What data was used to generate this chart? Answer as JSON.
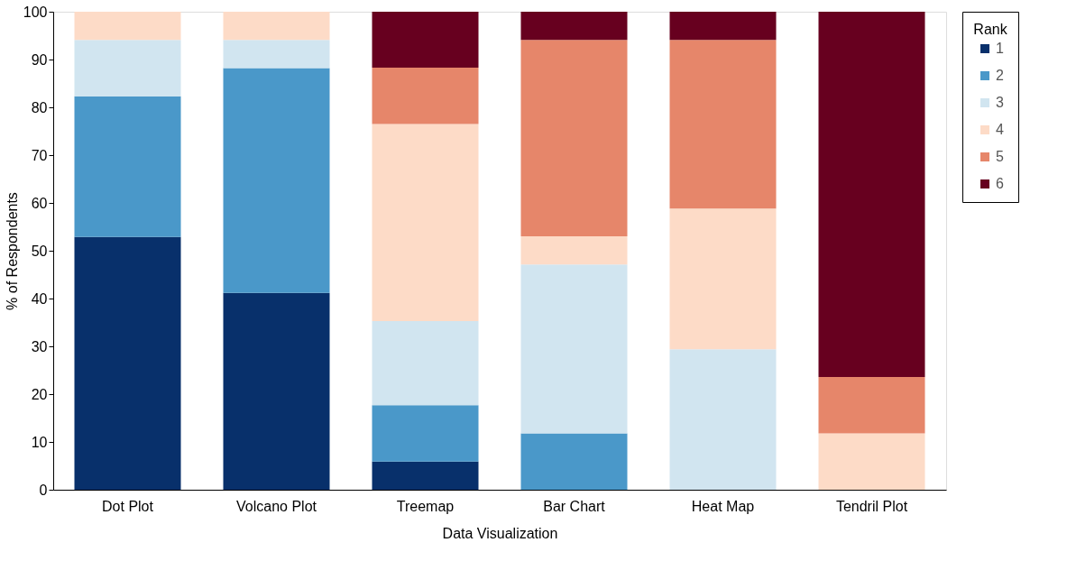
{
  "chart_data": {
    "type": "bar",
    "stacked": true,
    "xlabel": "Data Visualization",
    "ylabel": "% of Respondents",
    "legend_title": "Rank",
    "legend": "right",
    "grid": false,
    "categories": [
      "Dot Plot",
      "Volcano Plot",
      "Treemap",
      "Bar Chart",
      "Heat Map",
      "Tendril Plot"
    ],
    "ylim": [
      0,
      100
    ],
    "yticks": [
      0,
      10,
      20,
      30,
      40,
      50,
      60,
      70,
      80,
      90,
      100
    ],
    "series": [
      {
        "name": "1",
        "color": "#08306b",
        "values": [
          52.9,
          41.2,
          5.9,
          0,
          0,
          0
        ]
      },
      {
        "name": "2",
        "color": "#4a98c9",
        "values": [
          29.4,
          47.0,
          11.8,
          11.8,
          0,
          0
        ]
      },
      {
        "name": "3",
        "color": "#d1e5f0",
        "values": [
          11.8,
          5.9,
          17.6,
          35.3,
          29.4,
          0
        ]
      },
      {
        "name": "4",
        "color": "#fddbc7",
        "values": [
          5.9,
          5.9,
          41.2,
          5.9,
          29.4,
          11.8
        ]
      },
      {
        "name": "5",
        "color": "#e6866a",
        "values": [
          0,
          0,
          11.8,
          41.1,
          35.3,
          11.8
        ]
      },
      {
        "name": "6",
        "color": "#67001f",
        "values": [
          0,
          0,
          11.7,
          5.9,
          5.9,
          76.4
        ]
      }
    ]
  }
}
